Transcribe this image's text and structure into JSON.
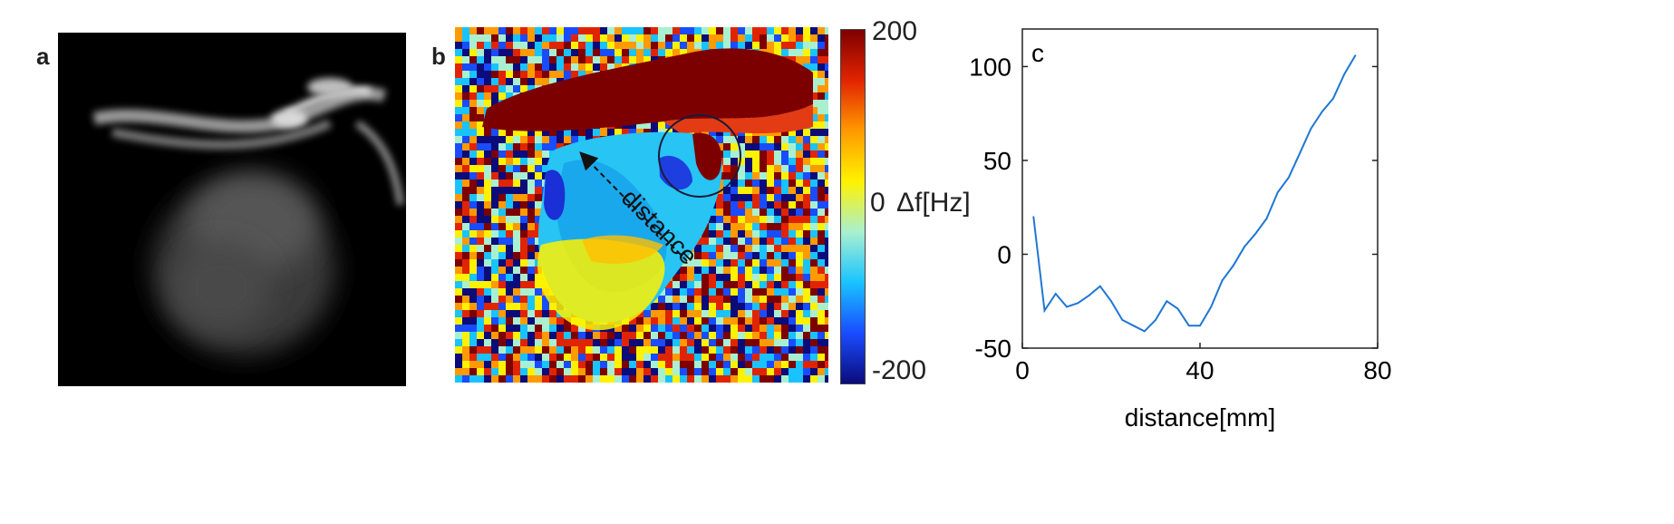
{
  "panels": {
    "a": {
      "label": "a"
    },
    "b": {
      "label": "b",
      "annotation": "distance",
      "colorbar": {
        "max_label": "200",
        "mid_label": "0",
        "unit_label": "Δf[Hz]",
        "min_label": "-200",
        "colors": [
          "#0b0b7a",
          "#1a4cff",
          "#19c3ff",
          "#a9f0d0",
          "#fff200",
          "#ff9a00",
          "#e12400",
          "#7d0000"
        ]
      }
    },
    "c": {
      "label": "c"
    }
  },
  "chart_data": {
    "type": "line",
    "xlabel": "distance[mm]",
    "ylabel": "",
    "xlim": [
      0,
      80
    ],
    "ylim": [
      -50,
      120
    ],
    "xticks": [
      0,
      40,
      80
    ],
    "yticks": [
      100,
      50,
      0,
      -50
    ],
    "color": "#1f77d4",
    "series": [
      {
        "x": [
          2.5,
          5,
          7.5,
          10,
          12.5,
          15,
          17.5,
          20,
          22.5,
          25,
          27.5,
          30,
          32.5,
          35,
          37.5,
          40,
          42.5,
          45,
          47.5,
          50,
          52.5,
          55,
          57.5,
          60,
          62.5,
          65,
          67.5,
          70,
          72.5,
          75
        ],
        "y": [
          20,
          -30,
          -21,
          -28,
          -26,
          -22,
          -17,
          -25,
          -35,
          -38,
          -41,
          -35,
          -25,
          -29,
          -38,
          -38,
          -28,
          -14,
          -6,
          4,
          11,
          19,
          33,
          41,
          54,
          67,
          76,
          83,
          96,
          106
        ]
      }
    ]
  }
}
